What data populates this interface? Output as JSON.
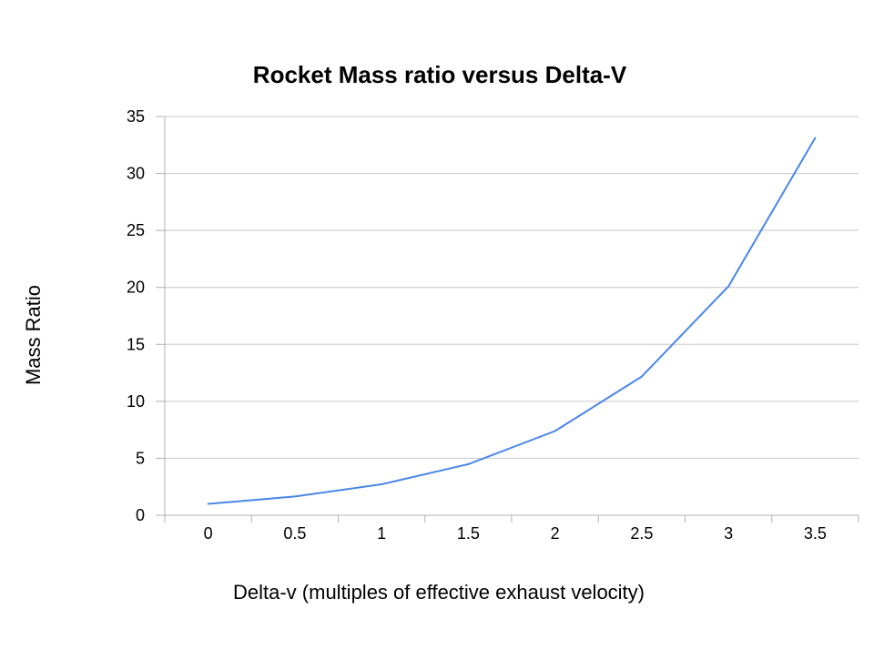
{
  "chart_data": {
    "type": "line",
    "title": "Rocket Mass ratio versus Delta-V",
    "xlabel": "Delta-v (multiples of effective exhaust velocity)",
    "ylabel": "Mass Ratio",
    "categories": [
      "0",
      "0.5",
      "1",
      "1.5",
      "2",
      "2.5",
      "3",
      "3.5"
    ],
    "series": [
      {
        "values": [
          1.0,
          1.65,
          2.72,
          4.48,
          7.39,
          12.18,
          20.09,
          33.12
        ]
      }
    ],
    "ylim": [
      0,
      35
    ],
    "yticks": [
      0,
      5,
      10,
      15,
      20,
      25,
      30,
      35
    ],
    "grid": "horizontal",
    "legend": "none",
    "colors": {
      "line": "#4a86e8",
      "grid": "#c8c8c8",
      "axis": "#b0b0b0",
      "text": "#000000"
    }
  }
}
